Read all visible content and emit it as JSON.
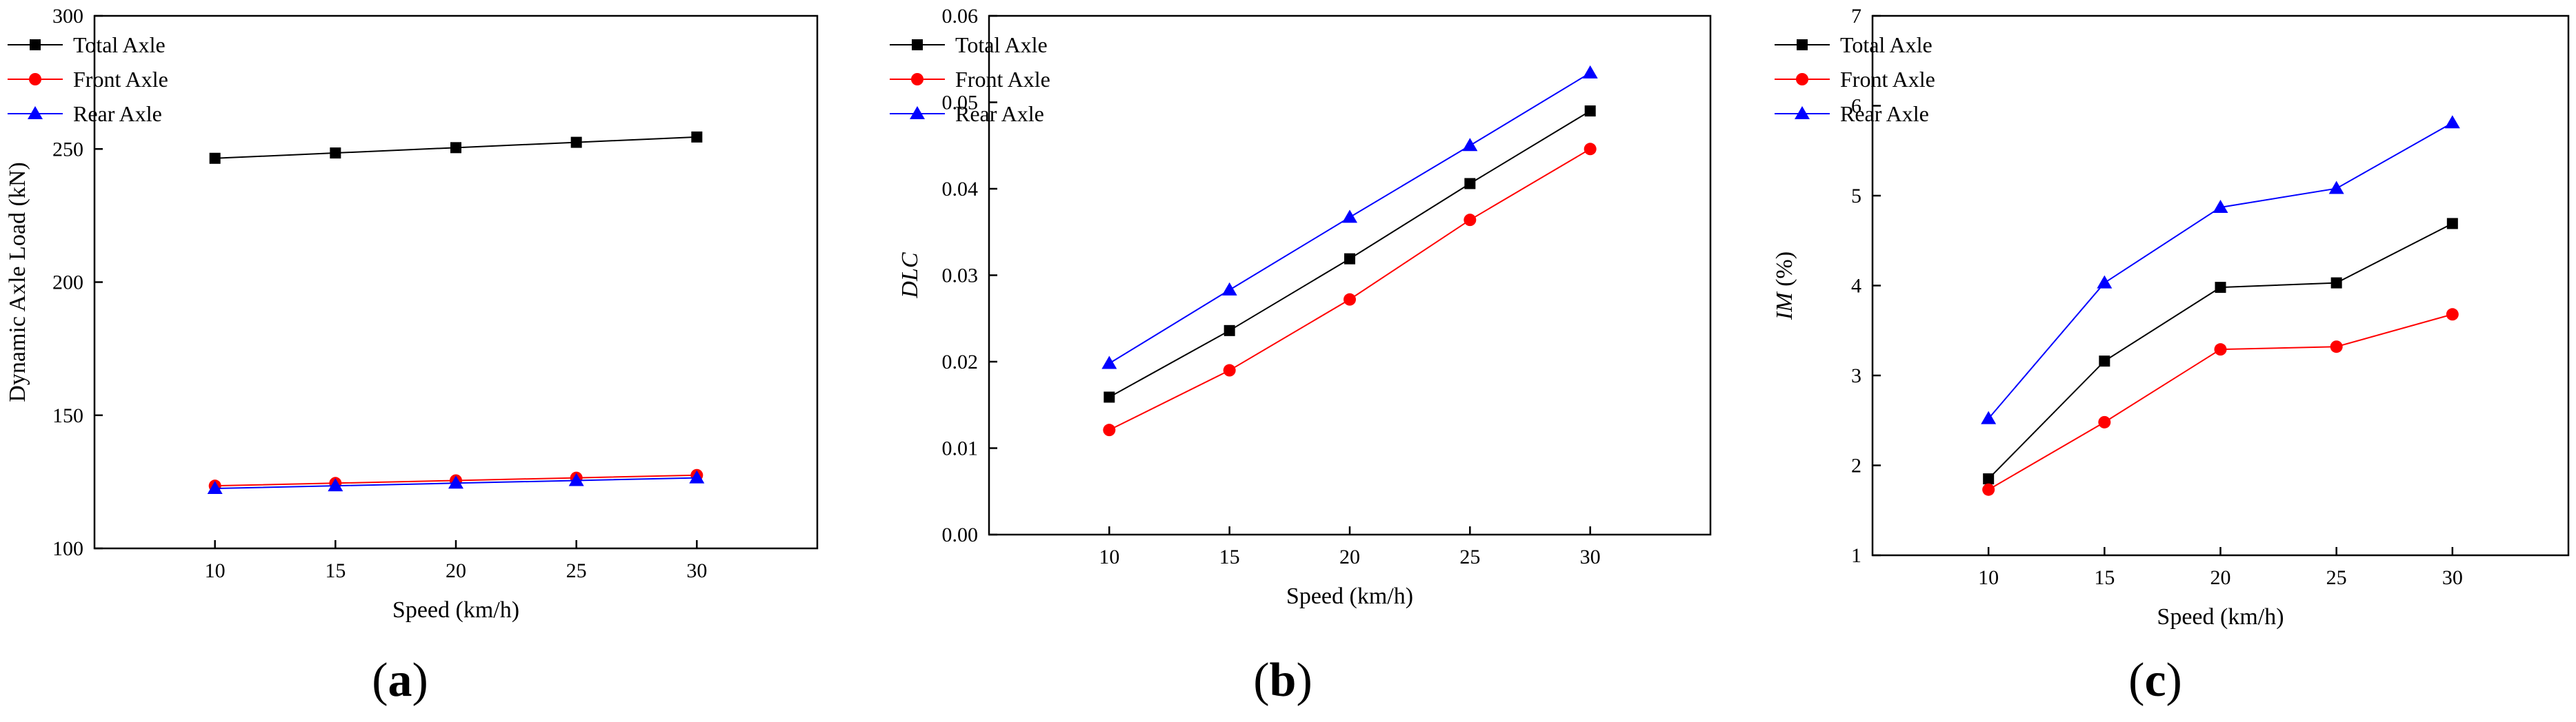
{
  "charts": [
    {
      "id": "a",
      "panel_label": "(a)",
      "panel_parts": [
        "(",
        "a",
        ")"
      ],
      "chart_data": {
        "type": "line",
        "title": "",
        "xlabel": "Speed (km/h)",
        "ylabel": "Dynamic Axle Load (kN)",
        "x": [
          10,
          15,
          20,
          25,
          30
        ],
        "xticks": [
          "10",
          "15",
          "20",
          "25",
          "30"
        ],
        "xlim": [
          5,
          35
        ],
        "ylim": [
          100,
          300
        ],
        "yticks": [
          "100",
          "150",
          "200",
          "250",
          "300"
        ],
        "ytick_values": [
          100,
          150,
          200,
          250,
          300
        ],
        "grid": false,
        "legend": "top-left",
        "series": [
          {
            "name": "Total Axle",
            "color": "#000000",
            "marker": "square",
            "values": [
              246.5,
              248.5,
              250.5,
              252.5,
              254.5
            ]
          },
          {
            "name": "Front Axle",
            "color": "#ff0000",
            "marker": "circle",
            "values": [
              123.5,
              124.5,
              125.5,
              126.5,
              127.5
            ]
          },
          {
            "name": "Rear Axle",
            "color": "#0000ff",
            "marker": "triangle",
            "values": [
              122.5,
              123.5,
              124.5,
              125.5,
              126.5
            ]
          }
        ]
      }
    },
    {
      "id": "b",
      "panel_label": "(b)",
      "panel_parts": [
        "(",
        "b",
        ")"
      ],
      "chart_data": {
        "type": "line",
        "title": "",
        "xlabel": "Speed (km/h)",
        "ylabel": "DLC",
        "ylabel_italic": true,
        "x": [
          10,
          15,
          20,
          25,
          30
        ],
        "xticks": [
          "10",
          "15",
          "20",
          "25",
          "30"
        ],
        "xlim": [
          5,
          35
        ],
        "ylim": [
          0,
          0.06
        ],
        "yticks": [
          "0.00",
          "0.01",
          "0.02",
          "0.03",
          "0.04",
          "0.05",
          "0.06"
        ],
        "ytick_values": [
          0,
          0.01,
          0.02,
          0.03,
          0.04,
          0.05,
          0.06
        ],
        "grid": false,
        "legend": "top-left",
        "series": [
          {
            "name": "Total Axle",
            "color": "#000000",
            "marker": "square",
            "values": [
              0.0159,
              0.0236,
              0.0319,
              0.0406,
              0.049
            ]
          },
          {
            "name": "Front Axle",
            "color": "#ff0000",
            "marker": "circle",
            "values": [
              0.0121,
              0.019,
              0.0272,
              0.0364,
              0.0446
            ]
          },
          {
            "name": "Rear Axle",
            "color": "#0000ff",
            "marker": "triangle",
            "values": [
              0.0198,
              0.0283,
              0.0367,
              0.045,
              0.0534
            ]
          }
        ]
      }
    },
    {
      "id": "c",
      "panel_label": "(c)",
      "panel_parts": [
        "(",
        "c",
        ")"
      ],
      "chart_data": {
        "type": "line",
        "title": "",
        "xlabel": "Speed (km/h)",
        "ylabel": "IM (%)",
        "ylabel_parts": [
          "IM",
          " (%)"
        ],
        "x": [
          10,
          15,
          20,
          25,
          30
        ],
        "xticks": [
          "10",
          "15",
          "20",
          "25",
          "30"
        ],
        "xlim": [
          5,
          35
        ],
        "ylim": [
          1,
          7
        ],
        "yticks": [
          "1",
          "2",
          "3",
          "4",
          "5",
          "6",
          "7"
        ],
        "ytick_values": [
          1,
          2,
          3,
          4,
          5,
          6,
          7
        ],
        "grid": false,
        "legend": "top-left",
        "series": [
          {
            "name": "Total Axle",
            "color": "#000000",
            "marker": "square",
            "values": [
              1.85,
              3.16,
              3.98,
              4.03,
              4.69
            ]
          },
          {
            "name": "Front Axle",
            "color": "#ff0000",
            "marker": "circle",
            "values": [
              1.73,
              2.48,
              3.29,
              3.32,
              3.68
            ]
          },
          {
            "name": "Rear Axle",
            "color": "#0000ff",
            "marker": "triangle",
            "values": [
              2.52,
              4.03,
              4.87,
              5.08,
              5.81
            ]
          }
        ]
      }
    }
  ]
}
